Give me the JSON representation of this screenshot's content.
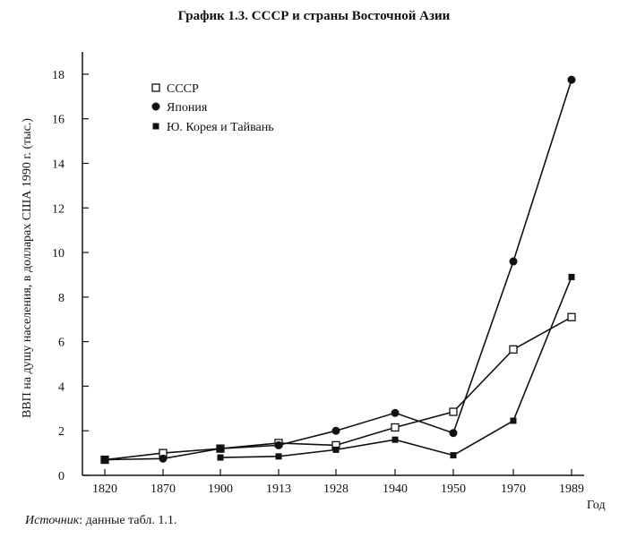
{
  "page": {
    "title": "График 1.3. СССР и страны Восточной Азии",
    "source_label": "Источник",
    "source_text": ": данные табл. 1.1."
  },
  "chart_data": {
    "type": "line",
    "title": "График 1.3. СССР и страны Восточной Азии",
    "xlabel": "Год",
    "ylabel": "ВВП на душу населения, в долларах США 1990 г. (тыс.)",
    "categories": [
      "1820",
      "1870",
      "1900",
      "1913",
      "1928",
      "1940",
      "1950",
      "1970",
      "1989"
    ],
    "ylim": [
      0,
      19
    ],
    "yticks": [
      0,
      2,
      4,
      6,
      8,
      10,
      12,
      14,
      16,
      18
    ],
    "grid": false,
    "legend_position": "top-left",
    "series": [
      {
        "name": "СССР",
        "marker": "open-square",
        "values": [
          0.7,
          1.0,
          1.2,
          1.45,
          1.35,
          2.15,
          2.85,
          5.65,
          7.1
        ]
      },
      {
        "name": "Япония",
        "marker": "filled-circle",
        "values": [
          0.7,
          0.75,
          1.2,
          1.35,
          2.0,
          2.8,
          1.9,
          9.6,
          17.75
        ]
      },
      {
        "name": "Ю. Корея и Тайвань",
        "marker": "filled-square",
        "values": [
          null,
          null,
          0.8,
          0.85,
          1.15,
          1.6,
          0.9,
          2.45,
          8.9
        ]
      }
    ]
  }
}
